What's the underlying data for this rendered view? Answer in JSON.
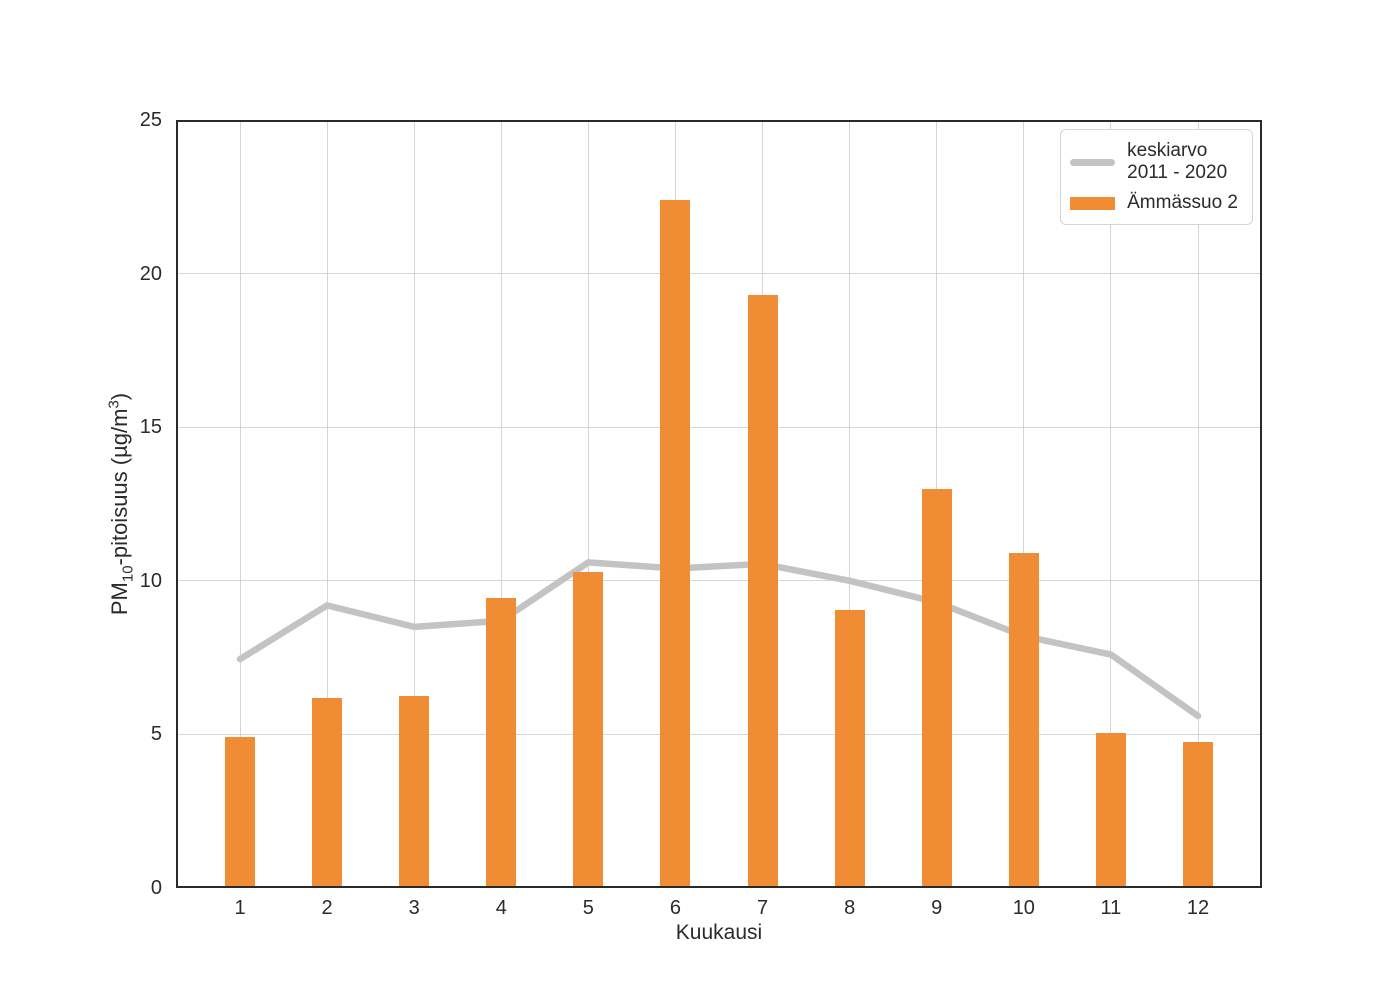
{
  "chart_data": {
    "type": "bar",
    "categories": [
      "1",
      "2",
      "3",
      "4",
      "5",
      "6",
      "7",
      "8",
      "9",
      "10",
      "11",
      "12"
    ],
    "series": [
      {
        "name": "keskiarvo 2011 - 2020",
        "type": "line",
        "color": "#c3c3c3",
        "values": [
          7.45,
          9.2,
          8.5,
          8.7,
          10.6,
          10.4,
          10.55,
          10.0,
          9.3,
          8.2,
          7.6,
          5.6
        ]
      },
      {
        "name": "Ämmässuo 2",
        "type": "bar",
        "color": "#f08c34",
        "values": [
          4.9,
          6.2,
          6.25,
          9.45,
          10.3,
          22.4,
          19.3,
          9.05,
          13.0,
          10.9,
          5.05,
          4.75
        ]
      }
    ],
    "xlabel": "Kuukausi",
    "ylabel": "PM₁₀-pitoisuus (µg/m³)",
    "ylabel_parts": {
      "prefix": "PM",
      "sub": "10",
      "mid": "-pitoisuus (µg/m",
      "sup": "3",
      "suffix": ")"
    },
    "ylim": [
      0,
      25
    ],
    "yticks": [
      0,
      5,
      10,
      15,
      20,
      25
    ],
    "grid": "both",
    "legend_position": "upper right"
  },
  "legend": {
    "items": [
      {
        "lines": [
          "keskiarvo",
          "2011 - 2020"
        ],
        "swatch": "line",
        "color": "#c3c3c3"
      },
      {
        "lines": [
          "Ämmässuo 2"
        ],
        "swatch": "bar",
        "color": "#f08c34"
      }
    ]
  },
  "style": {
    "background": "#ffffff",
    "bar_color": "#f08c34",
    "line_color": "#c3c3c3",
    "grid_color": "#d4d4d4",
    "spine_color": "#2a2a2a",
    "text_color": "#2b2b2b"
  }
}
